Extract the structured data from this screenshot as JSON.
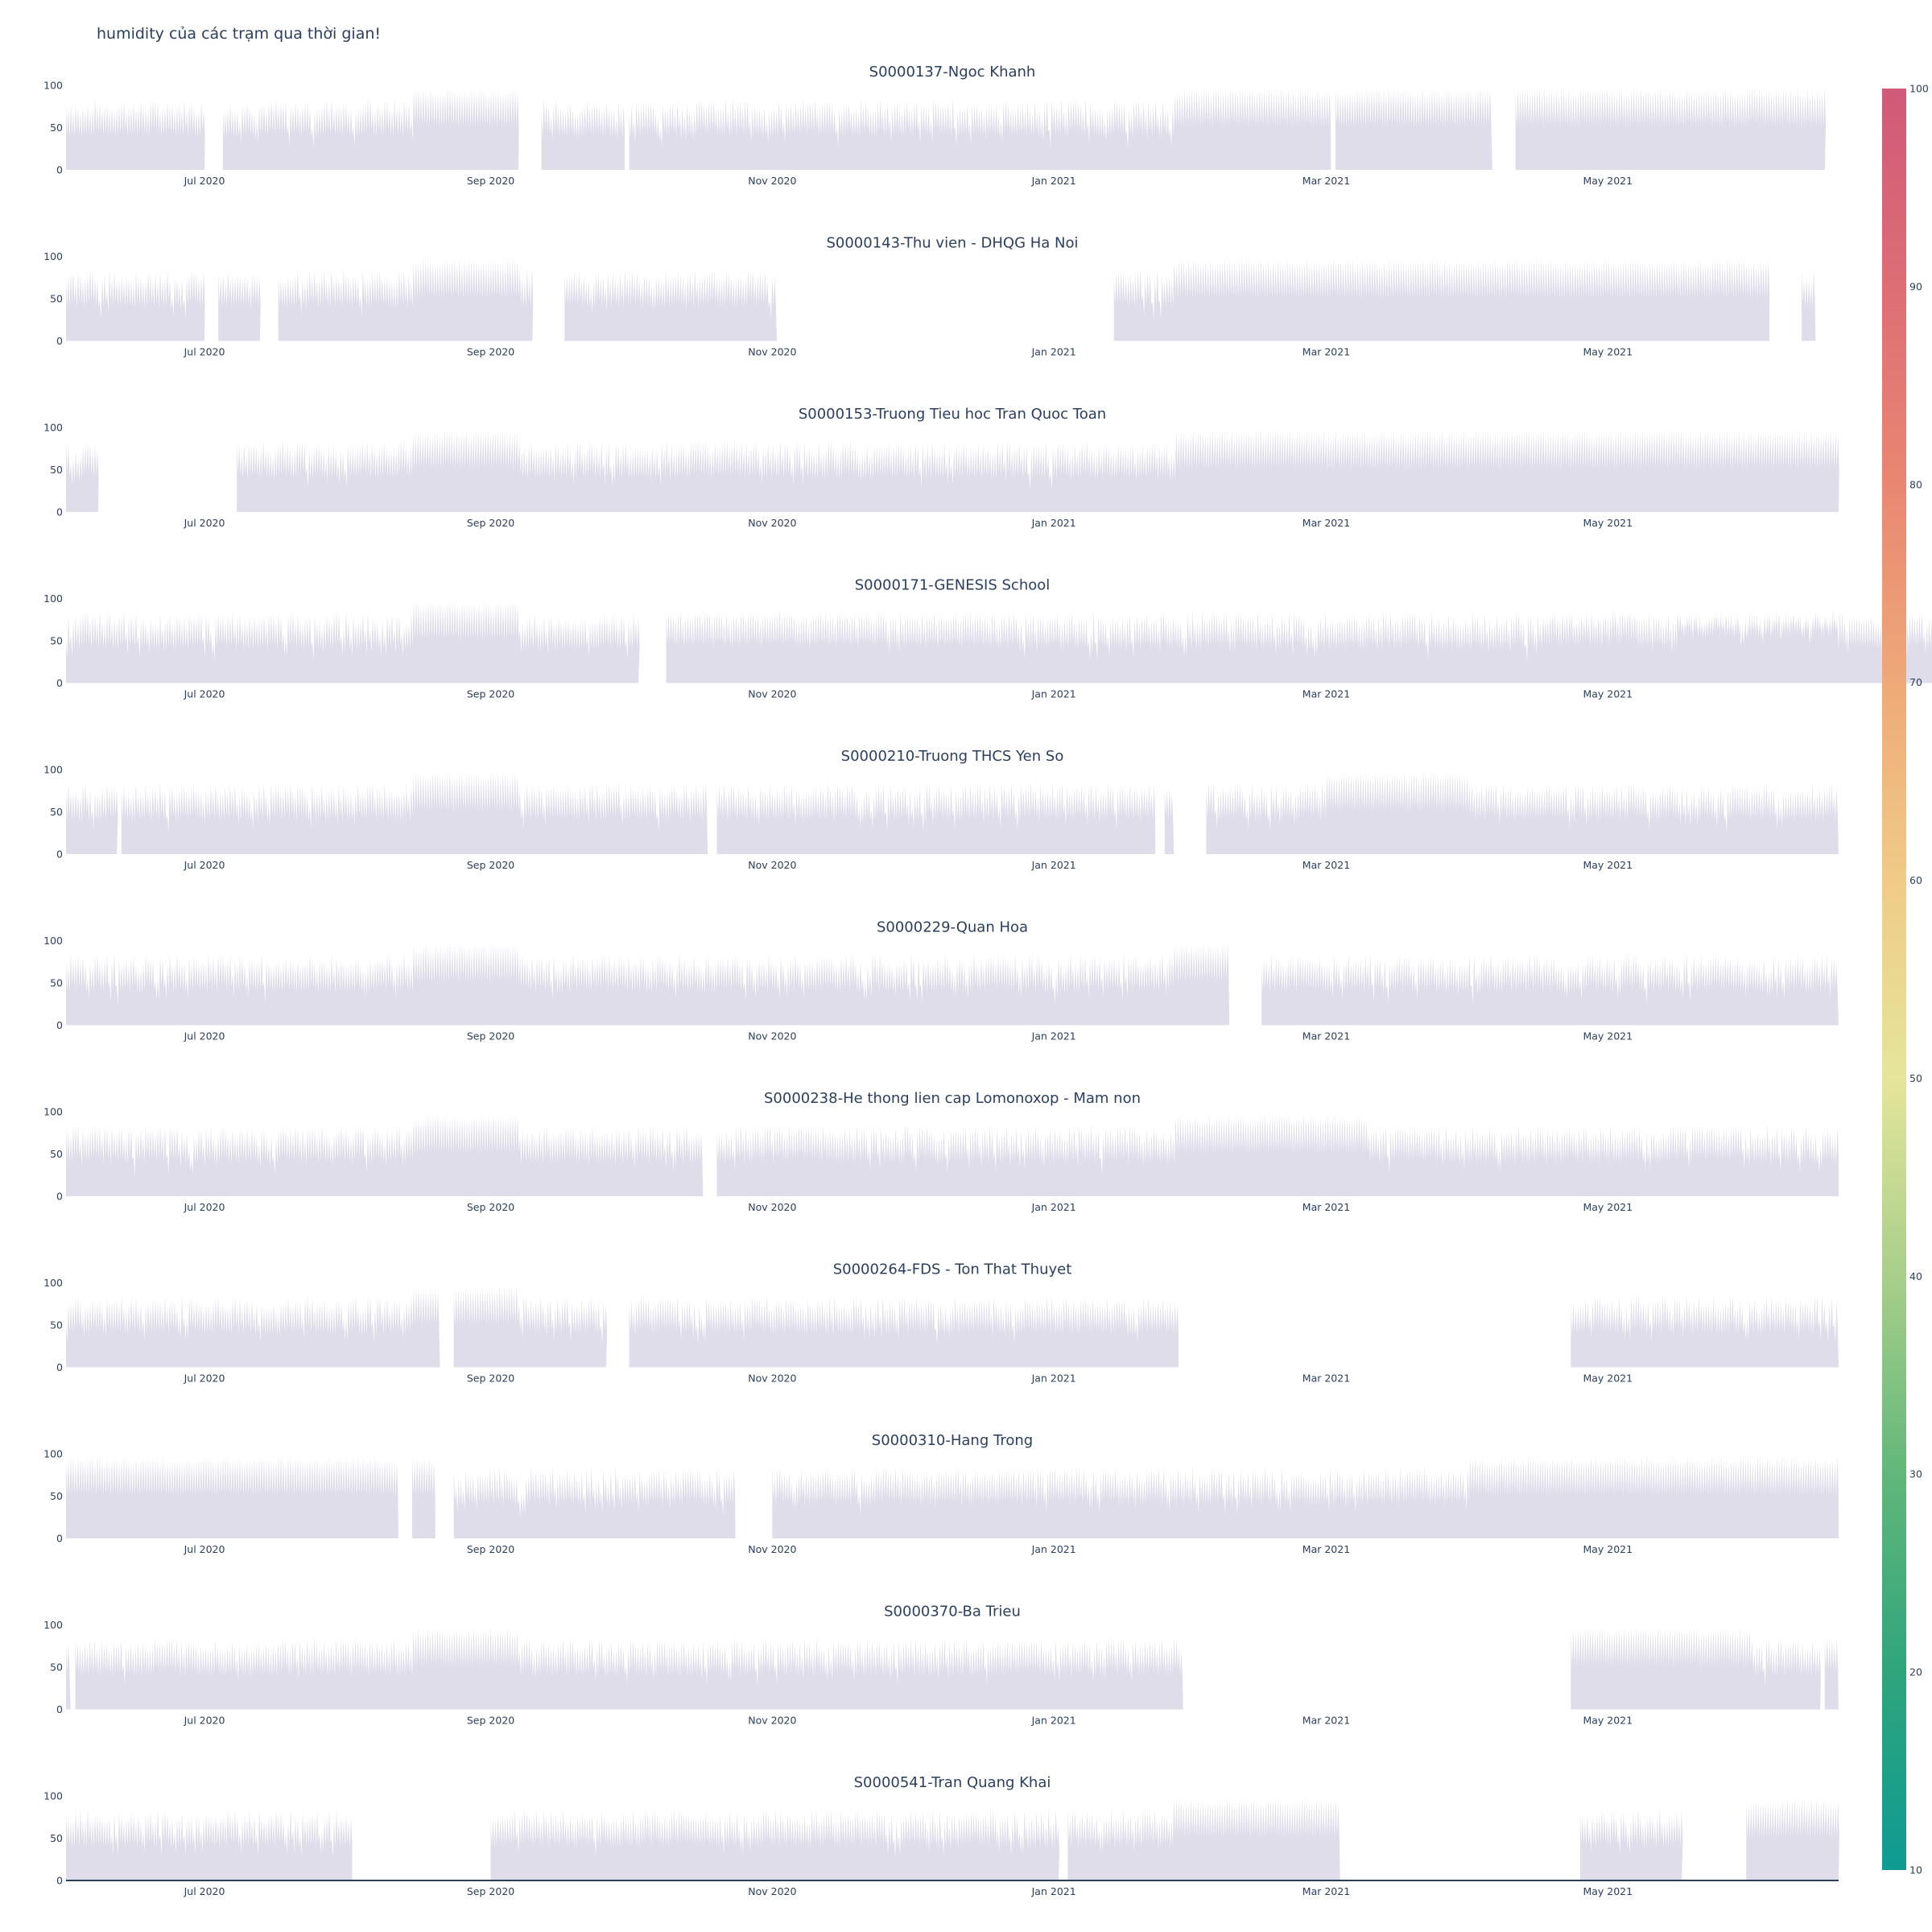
{
  "page": {
    "title": "humidity của các trạm qua thời gian!"
  },
  "chart_data": {
    "type": "bar",
    "x_domain": [
      "2020-06-01",
      "2021-06-20"
    ],
    "y_range": [
      0,
      100
    ],
    "y_ticks": [
      "0",
      "50",
      "100"
    ],
    "x_ticks": [
      {
        "date": "2020-07-01",
        "label": "Jul 2020"
      },
      {
        "date": "2020-09-01",
        "label": "Sep 2020"
      },
      {
        "date": "2020-11-01",
        "label": "Nov 2020"
      },
      {
        "date": "2021-01-01",
        "label": "Jan 2021"
      },
      {
        "date": "2021-03-01",
        "label": "Mar 2021"
      },
      {
        "date": "2021-05-01",
        "label": "May 2021"
      }
    ],
    "colorbar": {
      "range": [
        10,
        100
      ],
      "ticks": [
        "10",
        "20",
        "30",
        "40",
        "50",
        "60",
        "70",
        "80",
        "90",
        "100"
      ],
      "colors": [
        "#0e9b93",
        "#2fa57c",
        "#61b77a",
        "#a8cf8a",
        "#e5e59b",
        "#f0cb87",
        "#eea979",
        "#e98772",
        "#dd6e75",
        "#cf5a79"
      ]
    },
    "bar_color": "#dedde9",
    "stations": [
      {
        "name": "S0000137-Ngoc Khanh",
        "segments": [
          [
            "2020-06-01",
            "2020-07-01"
          ],
          [
            "2020-07-05",
            "2020-09-07"
          ],
          [
            "2020-09-12",
            "2020-09-30"
          ],
          [
            "2020-10-01",
            "2021-03-02"
          ],
          [
            "2021-03-03",
            "2021-04-06"
          ],
          [
            "2021-04-11",
            "2021-06-17"
          ]
        ],
        "wet_periods": [
          [
            "2020-08-15",
            "2020-09-07"
          ],
          [
            "2021-01-27",
            "2021-06-17"
          ]
        ]
      },
      {
        "name": "S0000143-Thu vien - DHQG Ha Noi",
        "segments": [
          [
            "2020-06-01",
            "2020-07-01"
          ],
          [
            "2020-07-04",
            "2020-07-13"
          ],
          [
            "2020-07-17",
            "2020-09-10"
          ],
          [
            "2020-09-17",
            "2020-11-02"
          ],
          [
            "2021-01-14",
            "2021-06-05"
          ],
          [
            "2021-06-12",
            "2021-06-15"
          ]
        ],
        "wet_periods": [
          [
            "2020-08-15",
            "2020-09-07"
          ],
          [
            "2021-01-27",
            "2021-06-05"
          ]
        ]
      },
      {
        "name": "S0000153-Truong Tieu hoc Tran Quoc Toan",
        "segments": [
          [
            "2020-06-01",
            "2020-06-08"
          ],
          [
            "2020-07-08",
            "2021-06-20"
          ]
        ],
        "wet_periods": [
          [
            "2020-08-15",
            "2020-09-07"
          ],
          [
            "2021-01-27",
            "2021-06-20"
          ]
        ]
      },
      {
        "name": "S0000171-GENESIS School",
        "segments": [
          [
            "2020-06-01",
            "2020-10-03"
          ],
          [
            "2020-10-09",
            "2021-12-11"
          ],
          [
            "2020-10-09",
            "2020-12-12"
          ],
          [
            "2021-04-17",
            "2021-05-07"
          ],
          [
            "2021-05-16",
            "2021-06-20"
          ]
        ],
        "wet_periods": [
          [
            "2020-08-15",
            "2020-09-07"
          ]
        ]
      },
      {
        "name": "S0000210-Truong THCS Yen So",
        "segments": [
          [
            "2020-06-01",
            "2020-06-12"
          ],
          [
            "2020-06-13",
            "2020-10-18"
          ],
          [
            "2020-10-20",
            "2021-01-23"
          ],
          [
            "2021-01-25",
            "2021-01-27"
          ],
          [
            "2021-02-03",
            "2021-06-20"
          ]
        ],
        "wet_periods": [
          [
            "2020-08-15",
            "2020-09-07"
          ],
          [
            "2021-03-01",
            "2021-04-01"
          ]
        ]
      },
      {
        "name": "S0000229-Quan Hoa",
        "segments": [
          [
            "2020-06-01",
            "2021-02-08"
          ],
          [
            "2021-02-15",
            "2021-06-20"
          ]
        ],
        "wet_periods": [
          [
            "2020-08-15",
            "2020-09-07"
          ],
          [
            "2021-01-27",
            "2021-02-08"
          ]
        ]
      },
      {
        "name": "S0000238-He thong lien cap Lomonoxop - Mam non",
        "segments": [
          [
            "2020-06-01",
            "2020-10-17"
          ],
          [
            "2020-10-20",
            "2021-06-20"
          ]
        ],
        "wet_periods": [
          [
            "2020-08-15",
            "2020-09-07"
          ],
          [
            "2021-01-27",
            "2021-03-10"
          ]
        ]
      },
      {
        "name": "S0000264-FDS - Ton That Thuyet",
        "segments": [
          [
            "2020-06-01",
            "2020-08-21"
          ],
          [
            "2020-08-24",
            "2020-09-26"
          ],
          [
            "2020-10-01",
            "2021-01-28"
          ],
          [
            "2021-04-23",
            "2021-06-20"
          ]
        ],
        "wet_periods": [
          [
            "2020-08-15",
            "2020-09-07"
          ]
        ]
      },
      {
        "name": "S0000310-Hang Trong",
        "segments": [
          [
            "2020-06-01",
            "2020-08-12"
          ],
          [
            "2020-08-15",
            "2020-08-20"
          ],
          [
            "2020-08-24",
            "2020-10-24"
          ],
          [
            "2020-11-01",
            "2021-06-20"
          ]
        ],
        "wet_periods": [
          [
            "2020-06-01",
            "2020-08-12"
          ],
          [
            "2020-08-15",
            "2020-08-20"
          ],
          [
            "2021-04-01",
            "2021-06-20"
          ]
        ]
      },
      {
        "name": "S0000370-Ba Trieu",
        "segments": [
          [
            "2020-06-01",
            "2020-06-02"
          ],
          [
            "2020-06-03",
            "2021-01-29"
          ],
          [
            "2021-04-23",
            "2021-06-16"
          ],
          [
            "2021-06-17",
            "2021-06-20"
          ]
        ],
        "wet_periods": [
          [
            "2020-08-15",
            "2020-09-07"
          ],
          [
            "2021-04-23",
            "2021-06-01"
          ]
        ]
      },
      {
        "name": "S0000541-Tran Quang Khai",
        "segments": [
          [
            "2020-06-01",
            "2020-08-02"
          ],
          [
            "2020-09-01",
            "2021-01-02"
          ],
          [
            "2021-01-04",
            "2021-03-04"
          ],
          [
            "2021-04-25",
            "2021-05-17"
          ],
          [
            "2021-05-31",
            "2021-06-20"
          ]
        ],
        "wet_periods": [
          [
            "2021-01-27",
            "2021-03-04"
          ],
          [
            "2021-05-31",
            "2021-06-20"
          ]
        ]
      }
    ]
  }
}
